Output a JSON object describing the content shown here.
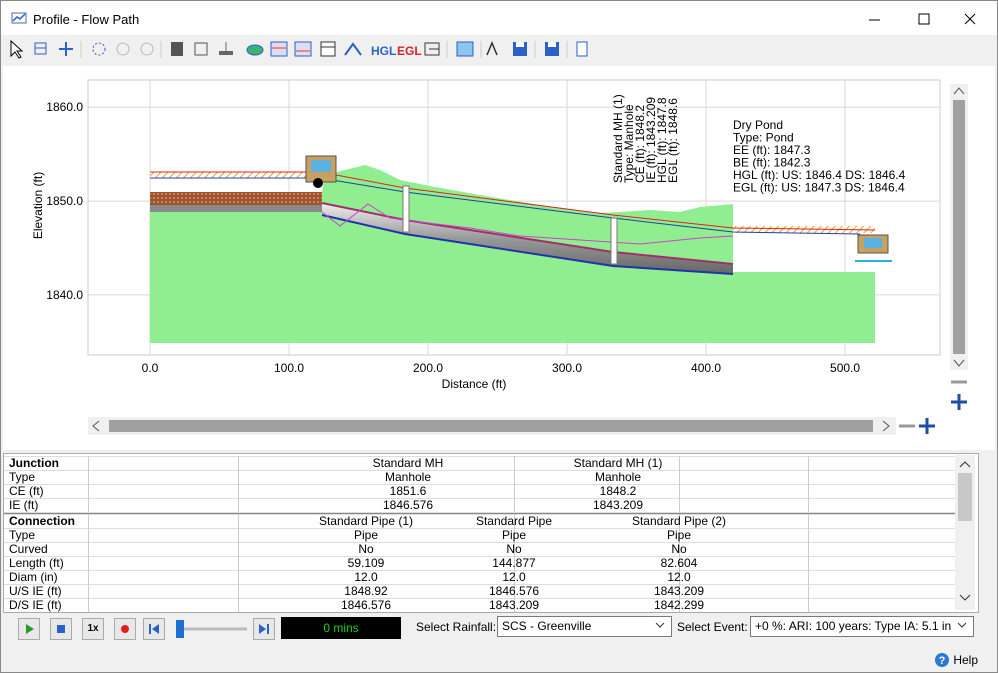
{
  "window": {
    "title": "Profile - Flow Path"
  },
  "toolbar": {
    "hgl_button": "HGL",
    "egl_button": "EGL"
  },
  "profile": {
    "y_label": "Elevation (ft)",
    "x_label": "Distance (ft)",
    "xlim": [
      -44.6,
      568.3
    ],
    "ylim": [
      1833.6,
      1862.9
    ],
    "xticks": [
      {
        "value": 0,
        "label": "0.0"
      },
      {
        "value": 100,
        "label": "100.0"
      },
      {
        "value": 200,
        "label": "200.0"
      },
      {
        "value": 300,
        "label": "300.0"
      },
      {
        "value": 400,
        "label": "400.0"
      },
      {
        "value": 500,
        "label": "500.0"
      }
    ],
    "yticks": [
      {
        "value": 1840,
        "label": "1840.0"
      },
      {
        "value": 1850,
        "label": "1850.0"
      },
      {
        "value": 1860,
        "label": "1860.0"
      }
    ],
    "manhole_label": [
      "Standard MH (1)",
      "Type: Manhole",
      "CE (ft): 1848.2",
      "IE (ft): 1843.209",
      "HGL (ft): 1847.8",
      "EGL (ft): 1848.6"
    ],
    "pond_label": [
      "Dry Pond",
      "Type: Pond",
      "EE (ft): 1847.3",
      "BE (ft): 1842.3",
      "HGL (ft): US: 1846.4 DS: 1846.4",
      "EGL (ft): US: 1847.3 DS: 1846.4"
    ]
  },
  "table": {
    "sections": [
      {
        "header": "Junction",
        "columns": [
          "Standard MH",
          "Standard MH (1)"
        ],
        "rows": [
          {
            "label": "Type",
            "values": [
              "Manhole",
              "Manhole"
            ]
          },
          {
            "label": "CE (ft)",
            "values": [
              "1851.6",
              "1848.2"
            ]
          },
          {
            "label": "IE (ft)",
            "values": [
              "1846.576",
              "1843.209"
            ]
          }
        ]
      },
      {
        "header": "Connection",
        "columns": [
          "Standard Pipe (1)",
          "Standard Pipe",
          "Standard Pipe (2)"
        ],
        "rows": [
          {
            "label": "Type",
            "values": [
              "Pipe",
              "Pipe",
              "Pipe"
            ]
          },
          {
            "label": "Curved",
            "values": [
              "No",
              "No",
              "No"
            ]
          },
          {
            "label": "Length (ft)",
            "values": [
              "59.109",
              "144.877",
              "82.604"
            ]
          },
          {
            "label": "Diam (in)",
            "values": [
              "12.0",
              "12.0",
              "12.0"
            ]
          },
          {
            "label": "U/S IE (ft)",
            "values": [
              "1848.92",
              "1846.576",
              "1843.209"
            ]
          },
          {
            "label": "D/S IE (ft)",
            "values": [
              "1846.576",
              "1843.209",
              "1842.299"
            ]
          }
        ]
      }
    ]
  },
  "playback": {
    "speed": "1x",
    "timer": "0 mins",
    "rainfall_label": "Select Rainfall:",
    "rainfall": "SCS - Greenville",
    "event_label": "Select Event:",
    "event": "+0 %: ARI: 100 years: Type IA: 5.1 in"
  },
  "footer": {
    "help": "Help"
  }
}
